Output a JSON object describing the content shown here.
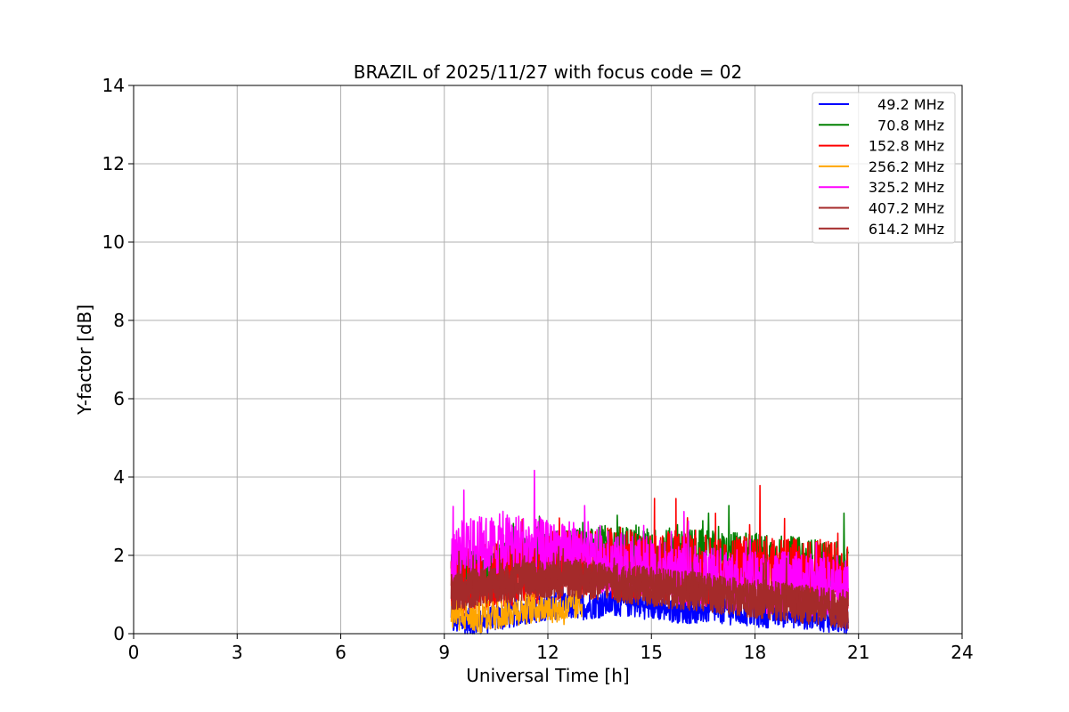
{
  "chart_data": {
    "type": "line",
    "title": "BRAZIL of 2025/11/27 with focus code = 02",
    "xlabel": "Universal Time [h]",
    "ylabel": "Y-factor [dB]",
    "xlim": [
      0,
      24
    ],
    "ylim": [
      0,
      14
    ],
    "xticks": [
      0,
      3,
      6,
      9,
      12,
      15,
      18,
      21,
      24
    ],
    "yticks": [
      0,
      2,
      4,
      6,
      8,
      10,
      12,
      14
    ],
    "xtick_labels": [
      "0",
      "3",
      "6",
      "9",
      "12",
      "15",
      "18",
      "21",
      "24"
    ],
    "ytick_labels": [
      "0",
      "2",
      "4",
      "6",
      "8",
      "10",
      "12",
      "14"
    ],
    "grid": true,
    "legend_position": "top-right",
    "series": [
      {
        "name": " 49.2 MHz",
        "color": "#0000ff",
        "x": [
          9.2,
          10.0,
          11.0,
          12.0,
          13.0,
          14.0,
          15.0,
          16.0,
          17.0,
          18.0,
          19.0,
          20.0,
          20.7
        ],
        "y": [
          0.3,
          0.3,
          0.5,
          0.7,
          0.7,
          0.8,
          0.7,
          0.6,
          0.6,
          0.5,
          0.5,
          0.4,
          0.3
        ],
        "noise": 0.35
      },
      {
        "name": " 70.8 MHz",
        "color": "#008000",
        "x": [
          9.2,
          10.0,
          11.0,
          12.0,
          13.0,
          14.0,
          15.0,
          16.0,
          17.0,
          18.0,
          19.0,
          20.0,
          20.7
        ],
        "y": [
          1.5,
          1.6,
          1.8,
          2.0,
          2.1,
          2.2,
          2.1,
          2.1,
          2.0,
          2.0,
          1.9,
          1.8,
          1.7
        ],
        "noise": 0.6
      },
      {
        "name": " 152.8 MHz",
        "color": "#ff0000",
        "x": [
          9.2,
          10.0,
          11.0,
          12.0,
          13.0,
          14.0,
          15.0,
          16.0,
          17.0,
          18.0,
          19.0,
          20.0,
          20.7
        ],
        "y": [
          1.3,
          1.4,
          1.6,
          1.7,
          1.8,
          1.8,
          1.7,
          1.7,
          1.6,
          1.6,
          1.6,
          1.5,
          1.4
        ],
        "noise": 0.9
      },
      {
        "name": " 256.2 MHz",
        "color": "#ffa500",
        "x": [
          9.2,
          10.0,
          11.0,
          12.0,
          12.5,
          13.0
        ],
        "y": [
          0.5,
          0.4,
          0.6,
          0.7,
          0.6,
          0.8
        ],
        "noise": 0.4
      },
      {
        "name": " 325.2 MHz",
        "color": "#ff00ff",
        "x": [
          9.2,
          10.0,
          11.0,
          12.0,
          13.0,
          14.0,
          15.0,
          16.0,
          17.0,
          18.0,
          19.0,
          20.0,
          20.7
        ],
        "y": [
          2.1,
          2.2,
          2.3,
          2.1,
          1.9,
          1.8,
          1.6,
          1.5,
          1.4,
          1.3,
          1.3,
          1.2,
          1.1
        ],
        "noise": 0.8
      },
      {
        "name": " 407.2 MHz",
        "color": "#a52a2a",
        "x": [
          9.2,
          10.0,
          11.0,
          12.0,
          13.0,
          14.0,
          15.0,
          16.0,
          17.0,
          18.0,
          19.0,
          20.0,
          20.7
        ],
        "y": [
          1.1,
          1.2,
          1.3,
          1.4,
          1.4,
          1.3,
          1.2,
          1.1,
          1.0,
          0.9,
          0.8,
          0.7,
          0.6
        ],
        "noise": 0.5
      },
      {
        "name": " 614.2 MHz",
        "color": "#a52a2a",
        "x": [
          9.2,
          10.0,
          11.0,
          12.0,
          13.0,
          14.0,
          15.0,
          16.0,
          17.0,
          18.0,
          19.0,
          20.0,
          20.7
        ],
        "y": [
          1.1,
          1.2,
          1.4,
          1.4,
          1.4,
          1.3,
          1.2,
          1.1,
          1.0,
          0.9,
          0.8,
          0.7,
          0.6
        ],
        "noise": 0.5
      }
    ]
  }
}
